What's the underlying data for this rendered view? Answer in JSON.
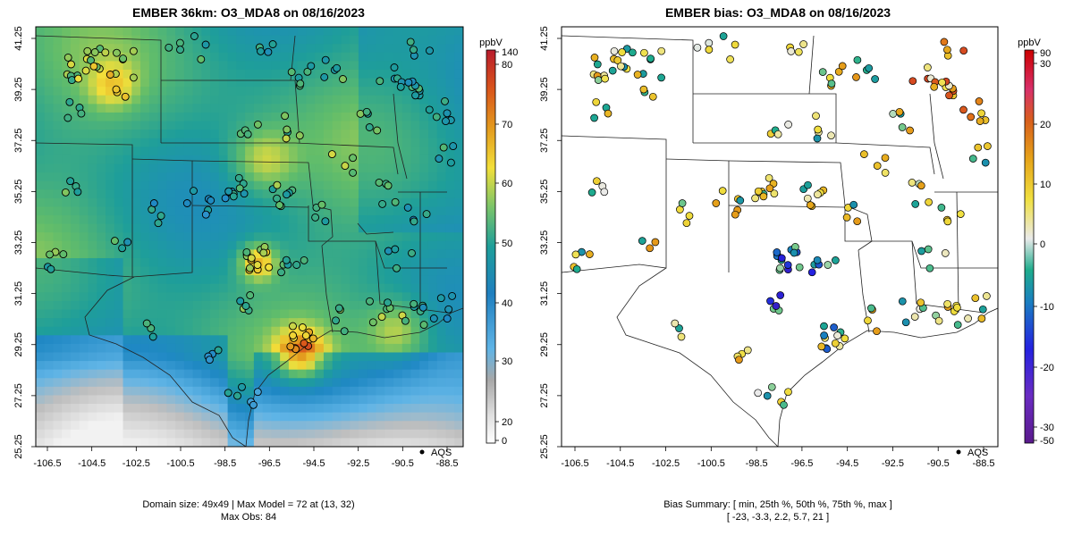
{
  "left_panel": {
    "title": "EMBER 36km: O3_MDA8 on 08/16/2023",
    "x_ticks": [
      "-106.5",
      "-104.5",
      "-102.5",
      "-100.5",
      "-98.5",
      "-96.5",
      "-94.5",
      "-92.5",
      "-90.5",
      "-88.5"
    ],
    "y_ticks": [
      "25.25",
      "27.25",
      "29.25",
      "31.25",
      "33.25",
      "35.25",
      "37.25",
      "39.25",
      "41.25"
    ],
    "legend_point_label": "AQS",
    "colorbar_unit": "ppbV",
    "colorbar_ticks": [
      "0",
      "20",
      "30",
      "40",
      "50",
      "60",
      "70",
      "80",
      "140"
    ],
    "footer_line1": "Domain size: 49x49 | Max Model = 72 at (13, 32)",
    "footer_line2": "Max Obs: 84"
  },
  "right_panel": {
    "title": "EMBER bias: O3_MDA8 on 08/16/2023",
    "x_ticks": [
      "-106.5",
      "-104.5",
      "-102.5",
      "-100.5",
      "-98.5",
      "-96.5",
      "-94.5",
      "-92.5",
      "-90.5",
      "-88.5"
    ],
    "y_ticks": [
      "25.25",
      "27.25",
      "29.25",
      "31.25",
      "33.25",
      "35.25",
      "37.25",
      "39.25",
      "41.25"
    ],
    "legend_point_label": "AQS",
    "colorbar_unit": "ppbV",
    "colorbar_ticks": [
      "90",
      "30",
      "20",
      "10",
      "0",
      "-10",
      "-20",
      "-30",
      "-50"
    ],
    "footer_line1": "Bias Summary: [ min, 25th %, 50th %, 75th %, max ]",
    "footer_line2": "[ -23,   -3.3,   2.2,   5.7,   21 ]"
  },
  "colors": {
    "model_scale": [
      "#f2f2f2",
      "#bdbdbd",
      "#5fb4e6",
      "#1f88c4",
      "#1e9e9a",
      "#62bd6a",
      "#f2df3a",
      "#e39b1e",
      "#d9551b",
      "#c2223a"
    ],
    "bias_scale": [
      "#5a1a8c",
      "#2422e0",
      "#1a7fc0",
      "#1eac8c",
      "#7ccb8c",
      "#eaeaea",
      "#f0e040",
      "#e6a51a",
      "#e06a1a",
      "#c8202a",
      "#cc0000"
    ]
  }
}
